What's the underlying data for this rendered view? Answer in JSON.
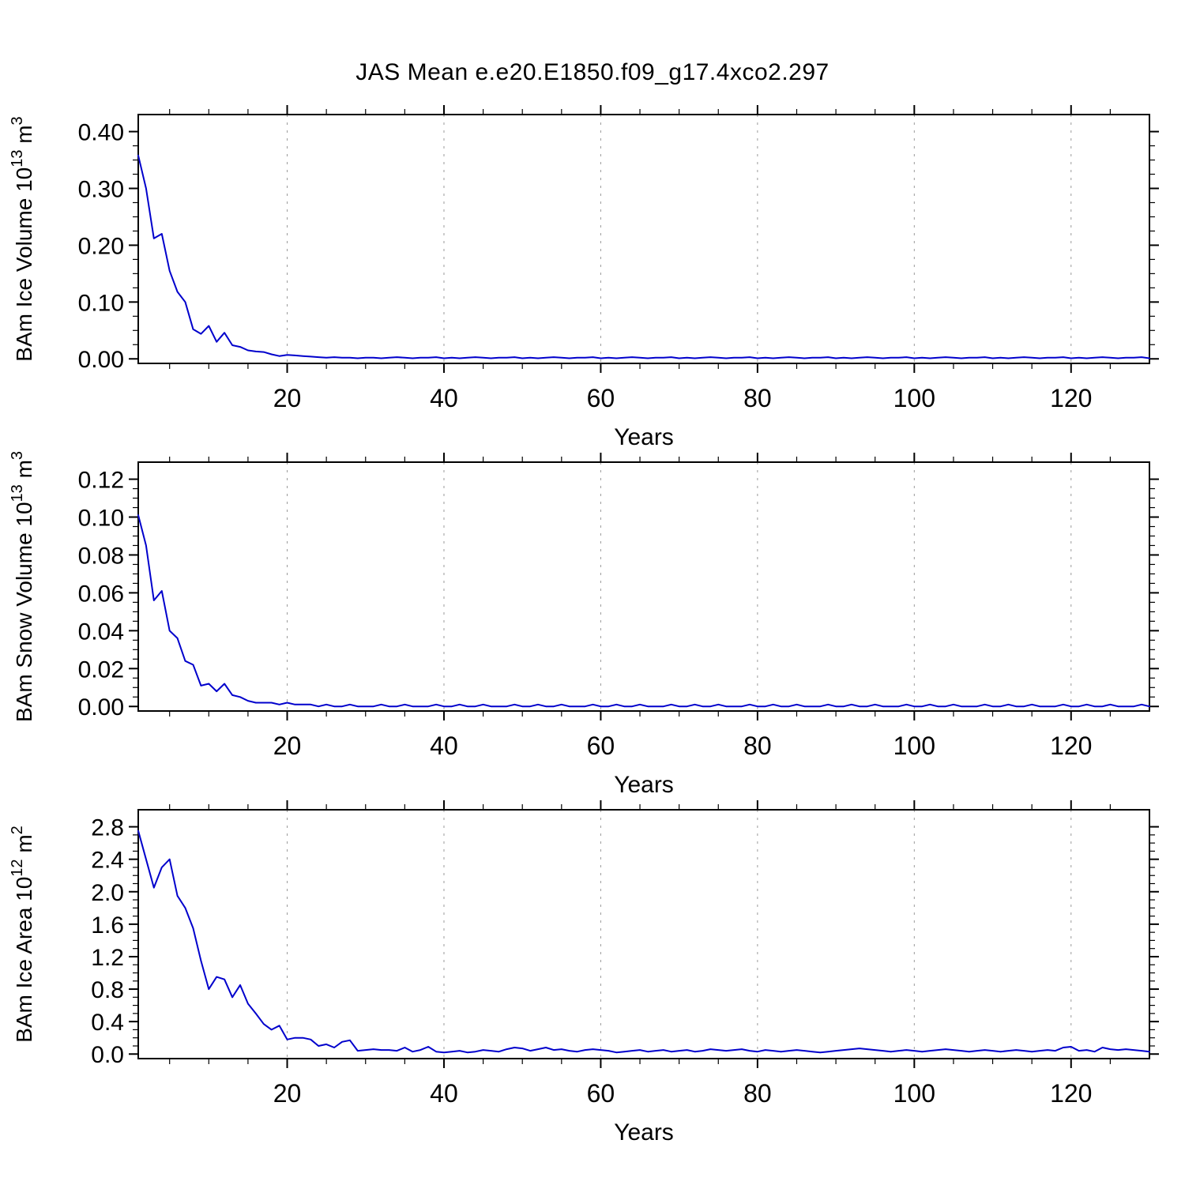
{
  "title": "JAS Mean e.e20.E1850.f09_g17.4xco2.297",
  "colors": {
    "line": "#0000cc",
    "grid": "#9a9a9a",
    "axis": "#000000"
  },
  "xaxis": {
    "label": "Years",
    "ticks": [
      20,
      40,
      60,
      80,
      100,
      120
    ],
    "minor_step": 5,
    "xlim": [
      1,
      130
    ]
  },
  "chart_data": [
    {
      "type": "line",
      "panel": "ice-volume",
      "ylabel": "BAm Ice Volume 10^13 m^3",
      "ylabel_parts": {
        "p1": "BAm Ice Volume 10",
        "sup1": "13",
        "p2": " m",
        "sup2": "3"
      },
      "xlabel": "Years",
      "xlim": [
        1,
        130
      ],
      "ylim": [
        0.0,
        0.4
      ],
      "yticks": [
        0.0,
        0.1,
        0.2,
        0.3,
        0.4
      ],
      "yminor_step": 0.025,
      "ydecimals": 2,
      "x_start": 1,
      "x_step": 1,
      "values": [
        0.358,
        0.3,
        0.212,
        0.22,
        0.155,
        0.118,
        0.1,
        0.052,
        0.044,
        0.058,
        0.03,
        0.046,
        0.024,
        0.021,
        0.015,
        0.013,
        0.012,
        0.008,
        0.005,
        0.007,
        0.006,
        0.005,
        0.004,
        0.003,
        0.002,
        0.003,
        0.002,
        0.002,
        0.001,
        0.002,
        0.002,
        0.001,
        0.002,
        0.003,
        0.002,
        0.001,
        0.002,
        0.002,
        0.003,
        0.001,
        0.002,
        0.001,
        0.002,
        0.003,
        0.002,
        0.001,
        0.002,
        0.002,
        0.003,
        0.001,
        0.002,
        0.001,
        0.002,
        0.003,
        0.002,
        0.001,
        0.002,
        0.002,
        0.003,
        0.001,
        0.002,
        0.001,
        0.002,
        0.003,
        0.002,
        0.001,
        0.002,
        0.002,
        0.003,
        0.001,
        0.002,
        0.001,
        0.002,
        0.003,
        0.002,
        0.001,
        0.002,
        0.002,
        0.003,
        0.001,
        0.002,
        0.001,
        0.002,
        0.003,
        0.002,
        0.001,
        0.002,
        0.002,
        0.003,
        0.001,
        0.002,
        0.001,
        0.002,
        0.003,
        0.002,
        0.001,
        0.002,
        0.002,
        0.003,
        0.001,
        0.002,
        0.001,
        0.002,
        0.003,
        0.002,
        0.001,
        0.002,
        0.002,
        0.003,
        0.001,
        0.002,
        0.001,
        0.002,
        0.003,
        0.002,
        0.001,
        0.002,
        0.002,
        0.003,
        0.001,
        0.002,
        0.001,
        0.002,
        0.003,
        0.002,
        0.001,
        0.002,
        0.002,
        0.003,
        0.001
      ]
    },
    {
      "type": "line",
      "panel": "snow-volume",
      "ylabel": "BAm Snow Volume 10^13 m^3",
      "ylabel_parts": {
        "p1": "BAm Snow Volume 10",
        "sup1": "13",
        "p2": " m",
        "sup2": "3"
      },
      "xlabel": "Years",
      "xlim": [
        1,
        130
      ],
      "ylim": [
        0.0,
        0.12
      ],
      "yticks": [
        0.0,
        0.02,
        0.04,
        0.06,
        0.08,
        0.1,
        0.12
      ],
      "yminor_step": 0.005,
      "ydecimals": 2,
      "x_start": 1,
      "x_step": 1,
      "values": [
        0.101,
        0.085,
        0.056,
        0.061,
        0.04,
        0.036,
        0.024,
        0.022,
        0.011,
        0.012,
        0.008,
        0.012,
        0.006,
        0.005,
        0.003,
        0.002,
        0.002,
        0.002,
        0.001,
        0.002,
        0.001,
        0.001,
        0.001,
        0.0,
        0.001,
        0.0,
        0.0,
        0.001,
        0.0,
        0.0,
        0.0,
        0.001,
        0.0,
        0.0,
        0.001,
        0.0,
        0.0,
        0.0,
        0.001,
        0.0,
        0.0,
        0.001,
        0.0,
        0.0,
        0.001,
        0.0,
        0.0,
        0.0,
        0.001,
        0.0,
        0.0,
        0.001,
        0.0,
        0.0,
        0.001,
        0.0,
        0.0,
        0.0,
        0.001,
        0.0,
        0.0,
        0.001,
        0.0,
        0.0,
        0.001,
        0.0,
        0.0,
        0.0,
        0.001,
        0.0,
        0.0,
        0.001,
        0.0,
        0.0,
        0.001,
        0.0,
        0.0,
        0.0,
        0.001,
        0.0,
        0.0,
        0.001,
        0.0,
        0.0,
        0.001,
        0.0,
        0.0,
        0.0,
        0.001,
        0.0,
        0.0,
        0.001,
        0.0,
        0.0,
        0.001,
        0.0,
        0.0,
        0.0,
        0.001,
        0.0,
        0.0,
        0.001,
        0.0,
        0.0,
        0.001,
        0.0,
        0.0,
        0.0,
        0.001,
        0.0,
        0.0,
        0.001,
        0.0,
        0.0,
        0.001,
        0.0,
        0.0,
        0.0,
        0.001,
        0.0,
        0.0,
        0.001,
        0.0,
        0.0,
        0.001,
        0.0,
        0.0,
        0.0,
        0.001,
        0.0
      ]
    },
    {
      "type": "line",
      "panel": "ice-area",
      "ylabel": "BAm Ice Area 10^12 m^2",
      "ylabel_parts": {
        "p1": "BAm Ice Area 10",
        "sup1": "12",
        "p2": " m",
        "sup2": "2"
      },
      "xlabel": "Years",
      "xlim": [
        1,
        130
      ],
      "ylim": [
        0.0,
        2.8
      ],
      "yticks": [
        0.0,
        0.4,
        0.8,
        1.2,
        1.6,
        2.0,
        2.4,
        2.8
      ],
      "yminor_step": 0.1,
      "ydecimals": 1,
      "x_start": 1,
      "x_step": 1,
      "values": [
        2.75,
        2.4,
        2.05,
        2.3,
        2.4,
        1.95,
        1.8,
        1.55,
        1.15,
        0.8,
        0.95,
        0.92,
        0.7,
        0.85,
        0.62,
        0.5,
        0.37,
        0.3,
        0.35,
        0.18,
        0.2,
        0.2,
        0.18,
        0.1,
        0.12,
        0.08,
        0.15,
        0.17,
        0.04,
        0.05,
        0.06,
        0.05,
        0.05,
        0.04,
        0.08,
        0.03,
        0.05,
        0.09,
        0.03,
        0.02,
        0.03,
        0.04,
        0.02,
        0.03,
        0.05,
        0.04,
        0.03,
        0.06,
        0.08,
        0.07,
        0.04,
        0.06,
        0.08,
        0.05,
        0.06,
        0.04,
        0.03,
        0.05,
        0.06,
        0.05,
        0.04,
        0.02,
        0.03,
        0.04,
        0.05,
        0.03,
        0.04,
        0.05,
        0.03,
        0.04,
        0.05,
        0.03,
        0.04,
        0.06,
        0.05,
        0.04,
        0.05,
        0.06,
        0.04,
        0.03,
        0.05,
        0.04,
        0.03,
        0.04,
        0.05,
        0.04,
        0.03,
        0.02,
        0.03,
        0.04,
        0.05,
        0.06,
        0.07,
        0.06,
        0.05,
        0.04,
        0.03,
        0.04,
        0.05,
        0.04,
        0.03,
        0.04,
        0.05,
        0.06,
        0.05,
        0.04,
        0.03,
        0.04,
        0.05,
        0.04,
        0.03,
        0.04,
        0.05,
        0.04,
        0.03,
        0.04,
        0.05,
        0.04,
        0.08,
        0.09,
        0.04,
        0.05,
        0.03,
        0.08,
        0.06,
        0.05,
        0.06,
        0.05,
        0.04,
        0.03
      ]
    }
  ]
}
